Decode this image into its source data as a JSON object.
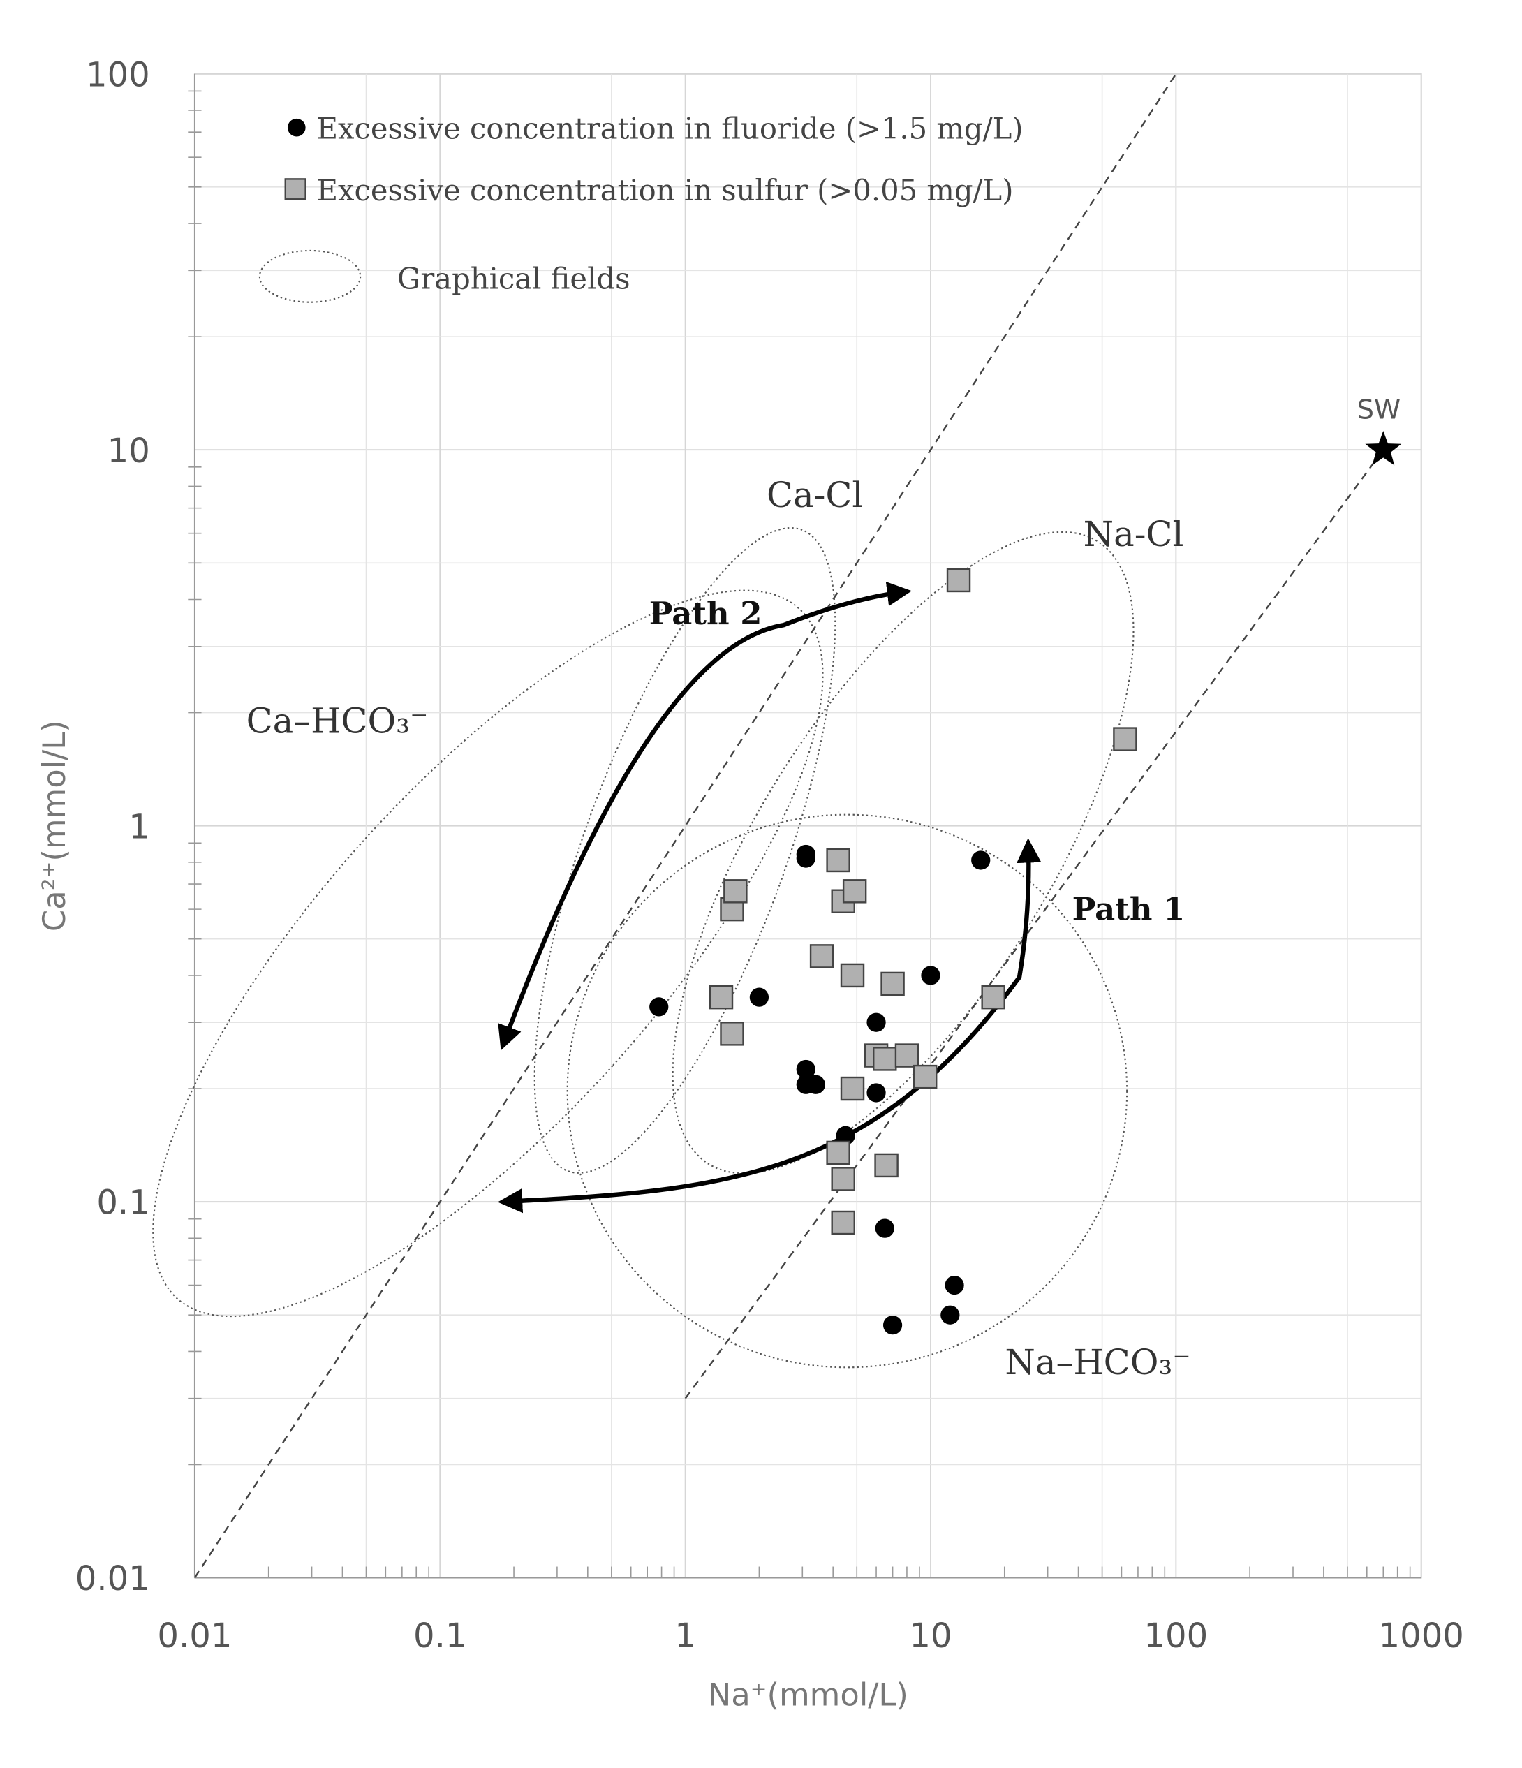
{
  "chart_data": {
    "type": "scatter",
    "x_scale": "log",
    "y_scale": "log",
    "xlim": [
      0.01,
      1000
    ],
    "ylim": [
      0.01,
      100
    ],
    "x_ticks": [
      "0.01",
      "0.1",
      "1",
      "10",
      "100",
      "1000"
    ],
    "y_ticks": [
      "0.01",
      "0.1",
      "1",
      "10",
      "100"
    ],
    "xlabel": "Na⁺(mmol/L)",
    "ylabel": "Ca²⁺(mmol/L)",
    "grid": true,
    "legend_position": "top-left",
    "legend": [
      {
        "marker": "circle",
        "label": "Excessive concentration in fluoride (>1.5 mg/L)"
      },
      {
        "marker": "square",
        "label": "Excessive concentration in sulfur (>0.05 mg/L)"
      },
      {
        "marker": "ellipse",
        "label": "Graphical fields"
      }
    ],
    "series": [
      {
        "name": "fluoride",
        "marker": "circle",
        "color": "#000000",
        "points": [
          [
            0.78,
            0.33
          ],
          [
            2.0,
            0.35
          ],
          [
            3.1,
            0.84
          ],
          [
            3.1,
            0.82
          ],
          [
            3.1,
            0.225
          ],
          [
            3.1,
            0.205
          ],
          [
            3.4,
            0.205
          ],
          [
            6.0,
            0.3
          ],
          [
            6.0,
            0.195
          ],
          [
            4.5,
            0.15
          ],
          [
            6.5,
            0.085
          ],
          [
            7.0,
            0.047
          ],
          [
            10.0,
            0.4
          ],
          [
            12.0,
            0.05
          ],
          [
            12.5,
            0.06
          ],
          [
            16.0,
            0.81
          ]
        ]
      },
      {
        "name": "sulfur",
        "marker": "square",
        "color": "#b0b0b0",
        "points": [
          [
            1.4,
            0.35
          ],
          [
            1.55,
            0.6
          ],
          [
            1.6,
            0.67
          ],
          [
            1.55,
            0.28
          ],
          [
            3.6,
            0.45
          ],
          [
            4.2,
            0.81
          ],
          [
            4.4,
            0.63
          ],
          [
            4.9,
            0.67
          ],
          [
            4.8,
            0.4
          ],
          [
            4.8,
            0.2
          ],
          [
            7.0,
            0.38
          ],
          [
            6.0,
            0.245
          ],
          [
            6.5,
            0.24
          ],
          [
            8.0,
            0.245
          ],
          [
            9.5,
            0.215
          ],
          [
            4.2,
            0.135
          ],
          [
            4.4,
            0.115
          ],
          [
            6.6,
            0.125
          ],
          [
            4.4,
            0.088
          ],
          [
            13.0,
            4.5
          ],
          [
            18.0,
            0.35
          ],
          [
            62.0,
            1.7
          ]
        ]
      }
    ],
    "reference_lines": [
      {
        "name": "1:1 line",
        "from": [
          0.01,
          0.01
        ],
        "to": [
          100,
          100
        ]
      },
      {
        "name": "seawater dilution line",
        "from": [
          1.0,
          0.03
        ],
        "to": [
          700,
          10
        ]
      }
    ],
    "seawater_point": {
      "label": "SW",
      "x": 700,
      "y": 10
    },
    "fields": [
      {
        "label": "Ca–HCO₃⁻"
      },
      {
        "label": "Ca-Cl"
      },
      {
        "label": "Na-Cl"
      },
      {
        "label": "Na–HCO₃⁻"
      }
    ],
    "paths": [
      {
        "label": "Path 2",
        "from": [
          0.18,
          0.26
        ],
        "to": [
          8.0,
          4.2
        ]
      },
      {
        "label": "Path 1",
        "from": [
          0.18,
          0.1
        ],
        "to": [
          25.0,
          0.9
        ]
      }
    ]
  }
}
